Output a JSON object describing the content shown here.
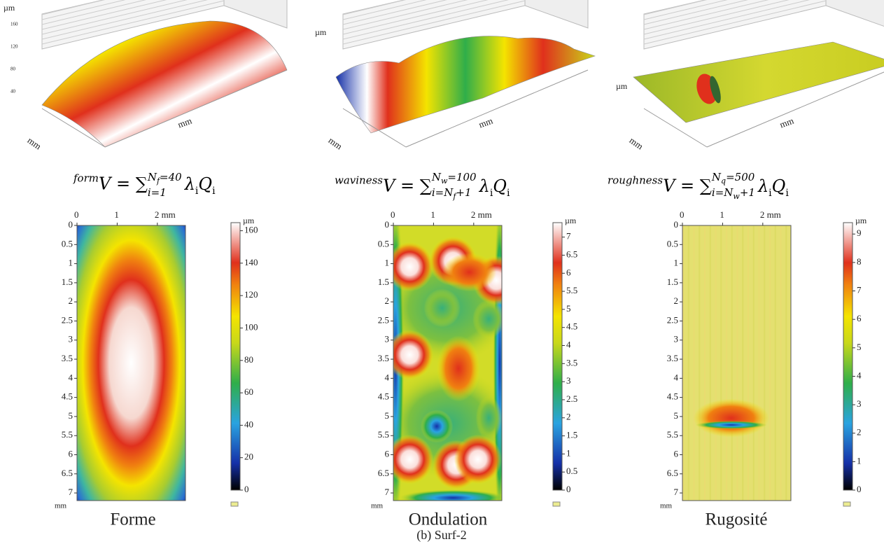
{
  "panels": [
    {
      "surface": {
        "z_unit": "µm",
        "axis_unit": "mm",
        "z_ticks": [
          160,
          120,
          80,
          40
        ]
      },
      "equation": {
        "pre": "form",
        "main": "V = ",
        "sum": "∑",
        "upper": [
          "N",
          "f",
          "=40"
        ],
        "lower": [
          "i=1"
        ],
        "tail": [
          "λ",
          "i",
          "Q",
          "i"
        ]
      },
      "map": {
        "x_unit": "mm",
        "xlim": [
          0,
          2.7
        ],
        "xticks": [
          0,
          1,
          {
            "value": 2,
            "label": "2 mm"
          }
        ],
        "ylim": [
          0,
          7.2
        ],
        "yticks": [
          0,
          0.5,
          1,
          1.5,
          2,
          2.5,
          3,
          3.5,
          4,
          4.5,
          5,
          5.5,
          6,
          6.5,
          7
        ]
      },
      "colorbar": {
        "unit": "µm",
        "lim": [
          0,
          165
        ],
        "ticks": [
          0,
          20,
          40,
          60,
          80,
          100,
          120,
          140,
          160
        ]
      },
      "label": "Forme"
    },
    {
      "surface": {
        "z_unit": "µm",
        "axis_unit": "mm",
        "z_ticks": []
      },
      "equation": {
        "pre": "waviness",
        "main": "V = ",
        "sum": "∑",
        "upper": [
          "N",
          "w",
          "=100"
        ],
        "lower": [
          "i=N",
          "f",
          "+1"
        ],
        "tail": [
          "λ",
          "i",
          "Q",
          "i"
        ]
      },
      "map": {
        "x_unit": "mm",
        "xlim": [
          0,
          2.7
        ],
        "xticks": [
          0,
          1,
          {
            "value": 2,
            "label": "2 mm"
          }
        ],
        "ylim": [
          0,
          7.2
        ],
        "yticks": [
          0,
          0.5,
          1,
          1.5,
          2,
          2.5,
          3,
          3.5,
          4,
          4.5,
          5,
          5.5,
          6,
          6.5,
          7
        ]
      },
      "colorbar": {
        "unit": "µm",
        "lim": [
          0,
          7.4
        ],
        "ticks": [
          0,
          0.5,
          1,
          1.5,
          2,
          2.5,
          3,
          3.5,
          4,
          4.5,
          5,
          5.5,
          6,
          6.5,
          7
        ]
      },
      "label": "Ondulation"
    },
    {
      "surface": {
        "z_unit": "µm",
        "axis_unit": "mm",
        "z_ticks": []
      },
      "equation": {
        "pre": "roughness",
        "main": "V = ",
        "sum": "∑",
        "upper": [
          "N",
          "q",
          "=500"
        ],
        "lower": [
          "i=N",
          "w",
          "+1"
        ],
        "tail": [
          "λ",
          "i",
          "Q",
          "i"
        ]
      },
      "map": {
        "x_unit": "mm",
        "xlim": [
          0,
          2.7
        ],
        "xticks": [
          0,
          1,
          {
            "value": 2,
            "label": "2 mm"
          }
        ],
        "ylim": [
          0,
          7.2
        ],
        "yticks": [
          0,
          0.5,
          1,
          1.5,
          2,
          2.5,
          3,
          3.5,
          4,
          4.5,
          5,
          5.5,
          6,
          6.5,
          7
        ]
      },
      "colorbar": {
        "unit": "µm",
        "lim": [
          0,
          9.4
        ],
        "ticks": [
          0,
          1,
          2,
          3,
          4,
          5,
          6,
          7,
          8,
          9
        ]
      },
      "label": "Rugosité"
    }
  ],
  "caption": "(b) Surf-2"
}
